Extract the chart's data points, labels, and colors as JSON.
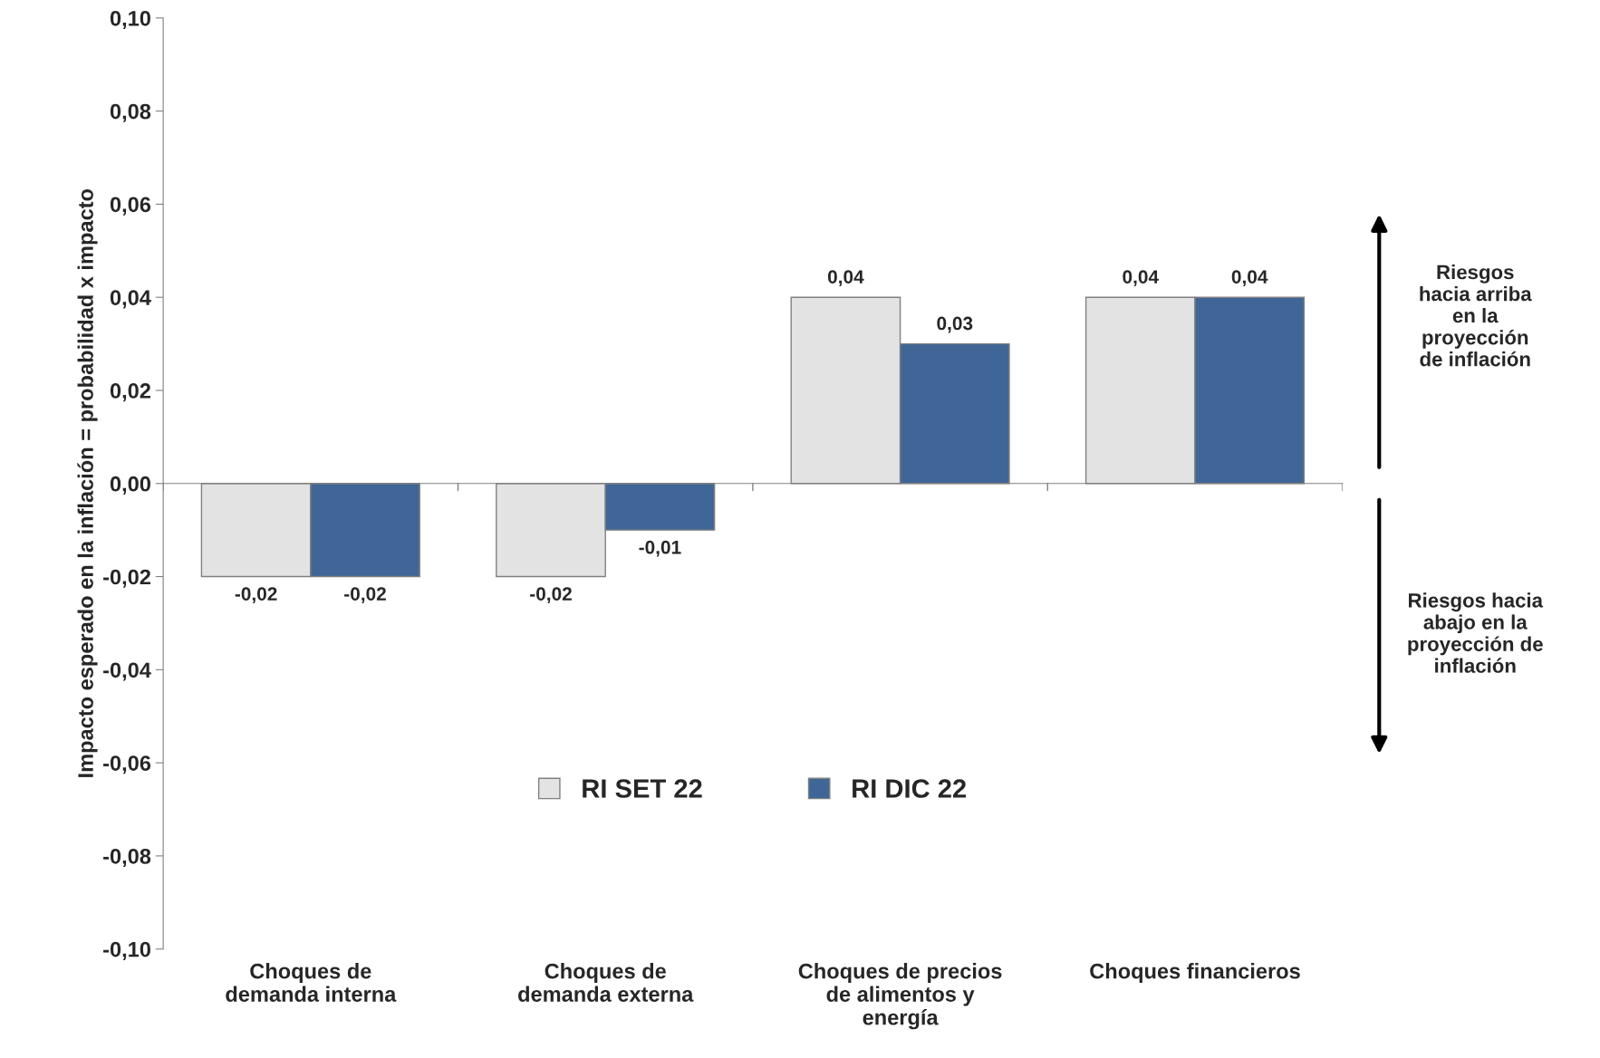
{
  "chart_data": {
    "type": "bar",
    "ylabel": "Impacto esperado en la inflación = probabilidad x impacto",
    "categories": [
      "Choques de\ndemanda interna",
      "Choques de\ndemanda externa",
      "Choques de precios\nde alimentos y\nenergía",
      "Choques financieros"
    ],
    "series": [
      {
        "name": "RI SET 22",
        "color": "#e3e3e3",
        "values": [
          -0.02,
          -0.02,
          0.04,
          0.04
        ],
        "value_labels": [
          "-0,02",
          "-0,02",
          "0,04",
          "0,04"
        ]
      },
      {
        "name": "RI DIC 22",
        "color": "#3f6696",
        "values": [
          -0.02,
          -0.01,
          0.03,
          0.04
        ],
        "value_labels": [
          "-0,02",
          "-0,01",
          "0,03",
          "0,04"
        ]
      }
    ],
    "ylim": [
      -0.1,
      0.1
    ],
    "yticks": [
      {
        "value": -0.1,
        "label": "-0,10"
      },
      {
        "value": -0.08,
        "label": "-0,08"
      },
      {
        "value": -0.06,
        "label": "-0,06"
      },
      {
        "value": -0.04,
        "label": "-0,04"
      },
      {
        "value": -0.02,
        "label": "-0,02"
      },
      {
        "value": 0,
        "label": "0,00"
      },
      {
        "value": 0.02,
        "label": "0,02"
      },
      {
        "value": 0.04,
        "label": "0,04"
      },
      {
        "value": 0.06,
        "label": "0,06"
      },
      {
        "value": 0.08,
        "label": "0,08"
      },
      {
        "value": 0.1,
        "label": "0,10"
      }
    ],
    "annotations": [
      "Riesgos\nhacia arriba\nen la\nproyección\nde inflación",
      "Riesgos hacia\nabajo en la\nproyección de\ninflación"
    ],
    "legend": "bottom"
  }
}
